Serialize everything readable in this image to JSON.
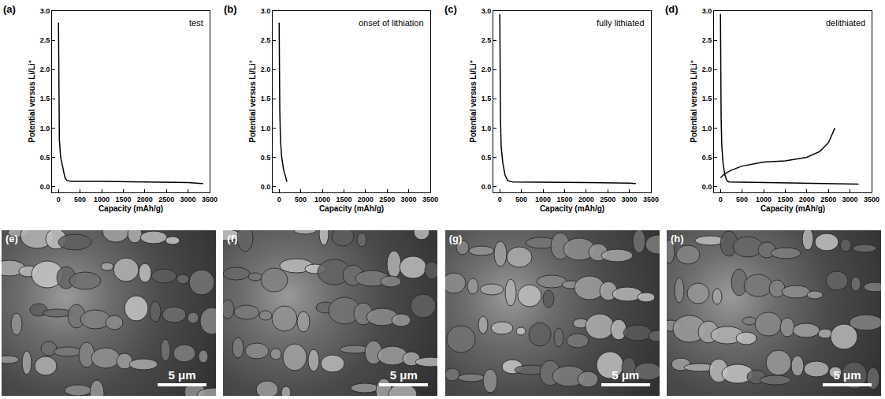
{
  "chart_data": [
    {
      "type": "line",
      "panel": "(a)",
      "annotation": "test",
      "x_label": "Capacity (mAh/g)",
      "y_label": "Potential versus Li/Li⁺",
      "xlim": [
        -150,
        3500
      ],
      "xticks": [
        0,
        500,
        1000,
        1500,
        2000,
        2500,
        3000,
        3500
      ],
      "ylim": [
        -0.1,
        3.0
      ],
      "yticks": [
        {
          "value": 0,
          "label": "0.0"
        },
        {
          "value": 0.5,
          "label": "0.5"
        },
        {
          "value": 1,
          "label": "1.0"
        },
        {
          "value": 1.5,
          "label": "1.5"
        },
        {
          "value": 2,
          "label": "2.0"
        },
        {
          "value": 2.5,
          "label": "2.5"
        },
        {
          "value": 3,
          "label": "3.0"
        }
      ],
      "grid": false,
      "series": [
        {
          "color": "#000000",
          "x": [
            0,
            5,
            10,
            20,
            50,
            100,
            150,
            200,
            300,
            1000,
            2000,
            3000,
            3350
          ],
          "values": [
            2.8,
            2.0,
            1.3,
            0.8,
            0.5,
            0.3,
            0.15,
            0.1,
            0.09,
            0.09,
            0.08,
            0.07,
            0.05
          ]
        }
      ]
    },
    {
      "type": "line",
      "panel": "(b)",
      "annotation": "onset of lithiation",
      "x_label": "Capacity (mAh/g)",
      "y_label": "Potential versus Li/Li⁺",
      "xlim": [
        -150,
        3500
      ],
      "xticks": [
        0,
        500,
        1000,
        1500,
        2000,
        2500,
        3000,
        3500
      ],
      "ylim": [
        -0.1,
        3.0
      ],
      "yticks": [
        {
          "value": 0,
          "label": "0.0"
        },
        {
          "value": 0.5,
          "label": "0.5"
        },
        {
          "value": 1,
          "label": "1.0"
        },
        {
          "value": 1.5,
          "label": "1.5"
        },
        {
          "value": 2,
          "label": "2.0"
        },
        {
          "value": 2.5,
          "label": "2.5"
        },
        {
          "value": 3,
          "label": "3.0"
        }
      ],
      "grid": false,
      "series": [
        {
          "color": "#000000",
          "x": [
            0,
            5,
            15,
            30,
            60,
            100,
            150,
            180
          ],
          "values": [
            2.8,
            2.0,
            1.3,
            0.8,
            0.5,
            0.3,
            0.15,
            0.08
          ]
        }
      ]
    },
    {
      "type": "line",
      "panel": "(c)",
      "annotation": "fully lithiated",
      "x_label": "Capacity (mAh/g)",
      "y_label": "Potential versus Li/Li⁺",
      "xlim": [
        -150,
        3500
      ],
      "xticks": [
        0,
        500,
        1000,
        1500,
        2000,
        2500,
        3000,
        3500
      ],
      "ylim": [
        -0.1,
        3.0
      ],
      "yticks": [
        {
          "value": 0,
          "label": "0.0"
        },
        {
          "value": 0.5,
          "label": "0.5"
        },
        {
          "value": 1,
          "label": "1.0"
        },
        {
          "value": 1.5,
          "label": "1.5"
        },
        {
          "value": 2,
          "label": "2.0"
        },
        {
          "value": 2.5,
          "label": "2.5"
        },
        {
          "value": 3,
          "label": "3.0"
        }
      ],
      "grid": false,
      "series": [
        {
          "color": "#000000",
          "x": [
            0,
            5,
            15,
            30,
            70,
            120,
            180,
            300,
            1000,
            2000,
            3000,
            3150
          ],
          "values": [
            2.95,
            2.0,
            1.2,
            0.7,
            0.4,
            0.2,
            0.1,
            0.08,
            0.08,
            0.07,
            0.06,
            0.05
          ]
        }
      ]
    },
    {
      "type": "line",
      "panel": "(d)",
      "annotation": "delithiated",
      "x_label": "Capacity (mAh/g)",
      "y_label": "Potential versus Li/Li⁺",
      "xlim": [
        -150,
        3500
      ],
      "xticks": [
        0,
        500,
        1000,
        1500,
        2000,
        2500,
        3000,
        3500
      ],
      "ylim": [
        -0.1,
        3.0
      ],
      "yticks": [
        {
          "value": 0,
          "label": "0.0"
        },
        {
          "value": 0.5,
          "label": "0.5"
        },
        {
          "value": 1,
          "label": "1.0"
        },
        {
          "value": 1.5,
          "label": "1.5"
        },
        {
          "value": 2,
          "label": "2.0"
        },
        {
          "value": 2.5,
          "label": "2.5"
        },
        {
          "value": 3,
          "label": "3.0"
        }
      ],
      "grid": false,
      "series": [
        {
          "color": "#000000",
          "x": [
            0,
            5,
            15,
            30,
            60,
            100,
            150,
            200,
            1000,
            2000,
            3000,
            3200
          ],
          "values": [
            2.95,
            2.0,
            1.2,
            0.7,
            0.4,
            0.2,
            0.1,
            0.08,
            0.07,
            0.06,
            0.05,
            0.04
          ]
        },
        {
          "color": "#000000",
          "x": [
            0,
            100,
            250,
            500,
            1000,
            1500,
            2000,
            2300,
            2500,
            2650
          ],
          "values": [
            0.15,
            0.22,
            0.28,
            0.35,
            0.42,
            0.44,
            0.5,
            0.6,
            0.75,
            1.0
          ]
        }
      ]
    }
  ],
  "images": [
    {
      "panel": "(e)",
      "scale_bar": "5 μm"
    },
    {
      "panel": "(f)",
      "scale_bar": "5 μm"
    },
    {
      "panel": "(g)",
      "scale_bar": "5 μm"
    },
    {
      "panel": "(h)",
      "scale_bar": "5 μm"
    }
  ]
}
